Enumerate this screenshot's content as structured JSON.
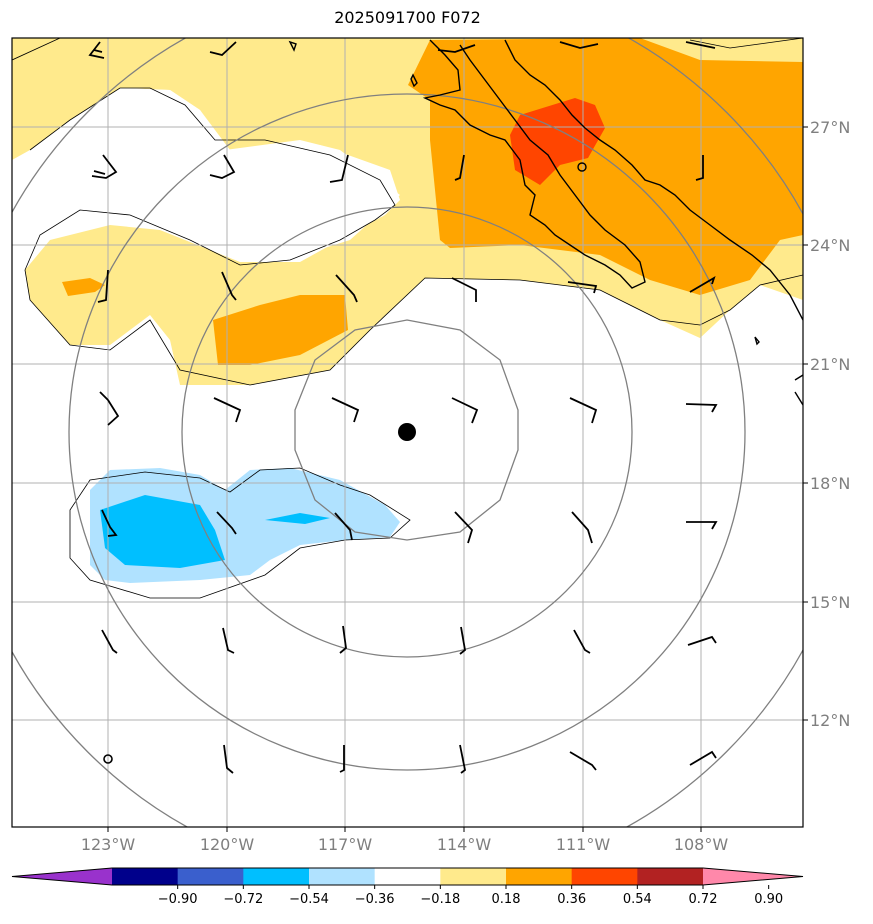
{
  "title": "2025091700 F072",
  "map": {
    "lon_labels": [
      "123°W",
      "120°W",
      "117°W",
      "114°W",
      "111°W",
      "108°W"
    ],
    "lat_labels": [
      "27°N",
      "24°N",
      "21°N",
      "18°N",
      "15°N",
      "12°N"
    ],
    "center_marker": "storm-center-dot",
    "colors": {
      "grid": "#b0b0b0",
      "range_rings": "#808080",
      "coastline": "#000000",
      "barbs": "#000000"
    }
  },
  "colorbar": {
    "labels": [
      "−0.90",
      "−0.72",
      "−0.54",
      "−0.36",
      "−0.18",
      "0.18",
      "0.36",
      "0.54",
      "0.72",
      "0.90"
    ],
    "colors": [
      "#9932cc",
      "#00008b",
      "#3a5fcd",
      "#00bfff",
      "#b0e2ff",
      "#ffffff",
      "#ffea8c",
      "#ffa500",
      "#ff4500",
      "#b22222",
      "#ff88aa"
    ]
  }
}
